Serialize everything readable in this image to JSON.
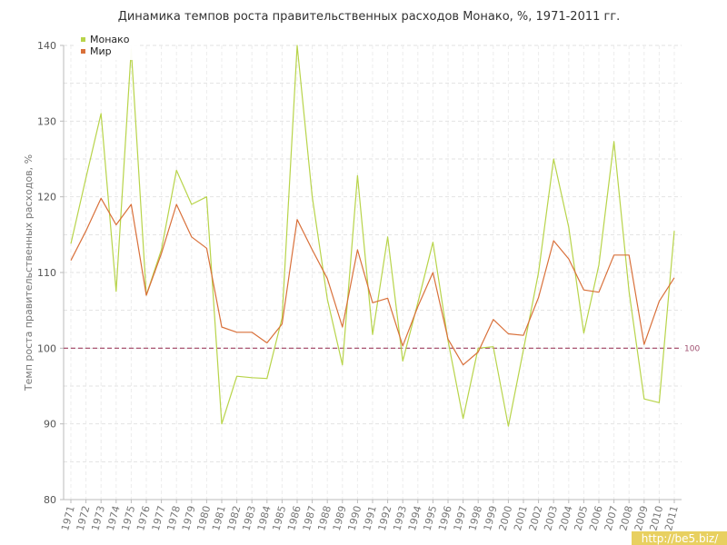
{
  "chart_data": {
    "type": "line",
    "title": "Динамика темпов роста правительственных расходов Монако, %, 1971-2011 гг.",
    "xlabel": "",
    "ylabel": "Темп роста правительственных расходов, %",
    "ylim": [
      80,
      140
    ],
    "yticks": [
      "80",
      "90",
      "100",
      "110",
      "120",
      "130",
      "140"
    ],
    "x": [
      "1971",
      "1972",
      "1973",
      "1974",
      "1975",
      "1976",
      "1977",
      "1978",
      "1979",
      "1980",
      "1981",
      "1982",
      "1983",
      "1984",
      "1985",
      "1986",
      "1987",
      "1988",
      "1989",
      "1990",
      "1991",
      "1992",
      "1993",
      "1994",
      "1995",
      "1996",
      "1997",
      "1998",
      "1999",
      "2000",
      "2001",
      "2002",
      "2003",
      "2004",
      "2005",
      "2006",
      "2007",
      "2008",
      "2009",
      "2010",
      "2011"
    ],
    "series": [
      {
        "name": "Монако",
        "color": "#b8d44a",
        "values": [
          113.8,
          122.5,
          131,
          107.5,
          139.5,
          107,
          113,
          123.5,
          119,
          120,
          90,
          96.3,
          96.1,
          96,
          104,
          140,
          120,
          106.5,
          97.8,
          122.8,
          101.8,
          114.7,
          98.3,
          106,
          114,
          101,
          90.7,
          100,
          100.2,
          89.7,
          99.8,
          110,
          125,
          116,
          102,
          111,
          127.3,
          107.5,
          93.3,
          92.8,
          115.5
        ]
      },
      {
        "name": "Мир",
        "color": "#d9703a",
        "values": [
          111.6,
          115.5,
          119.8,
          116.3,
          119,
          107,
          112.5,
          119,
          114.7,
          113.2,
          102.8,
          102.1,
          102.1,
          100.7,
          103.2,
          117,
          113,
          109.2,
          102.8,
          113,
          106,
          106.6,
          100.3,
          105.5,
          110,
          101.2,
          97.8,
          99.5,
          103.8,
          101.9,
          101.7,
          106.7,
          114.2,
          111.8,
          107.7,
          107.4,
          112.3,
          112.3,
          100.5,
          106.2,
          109.3
        ]
      }
    ],
    "reference_line": {
      "value": 100,
      "label": "100",
      "color": "#a04060"
    },
    "grid": true,
    "legend_position": "top-left"
  },
  "watermark": "http://be5.biz/"
}
